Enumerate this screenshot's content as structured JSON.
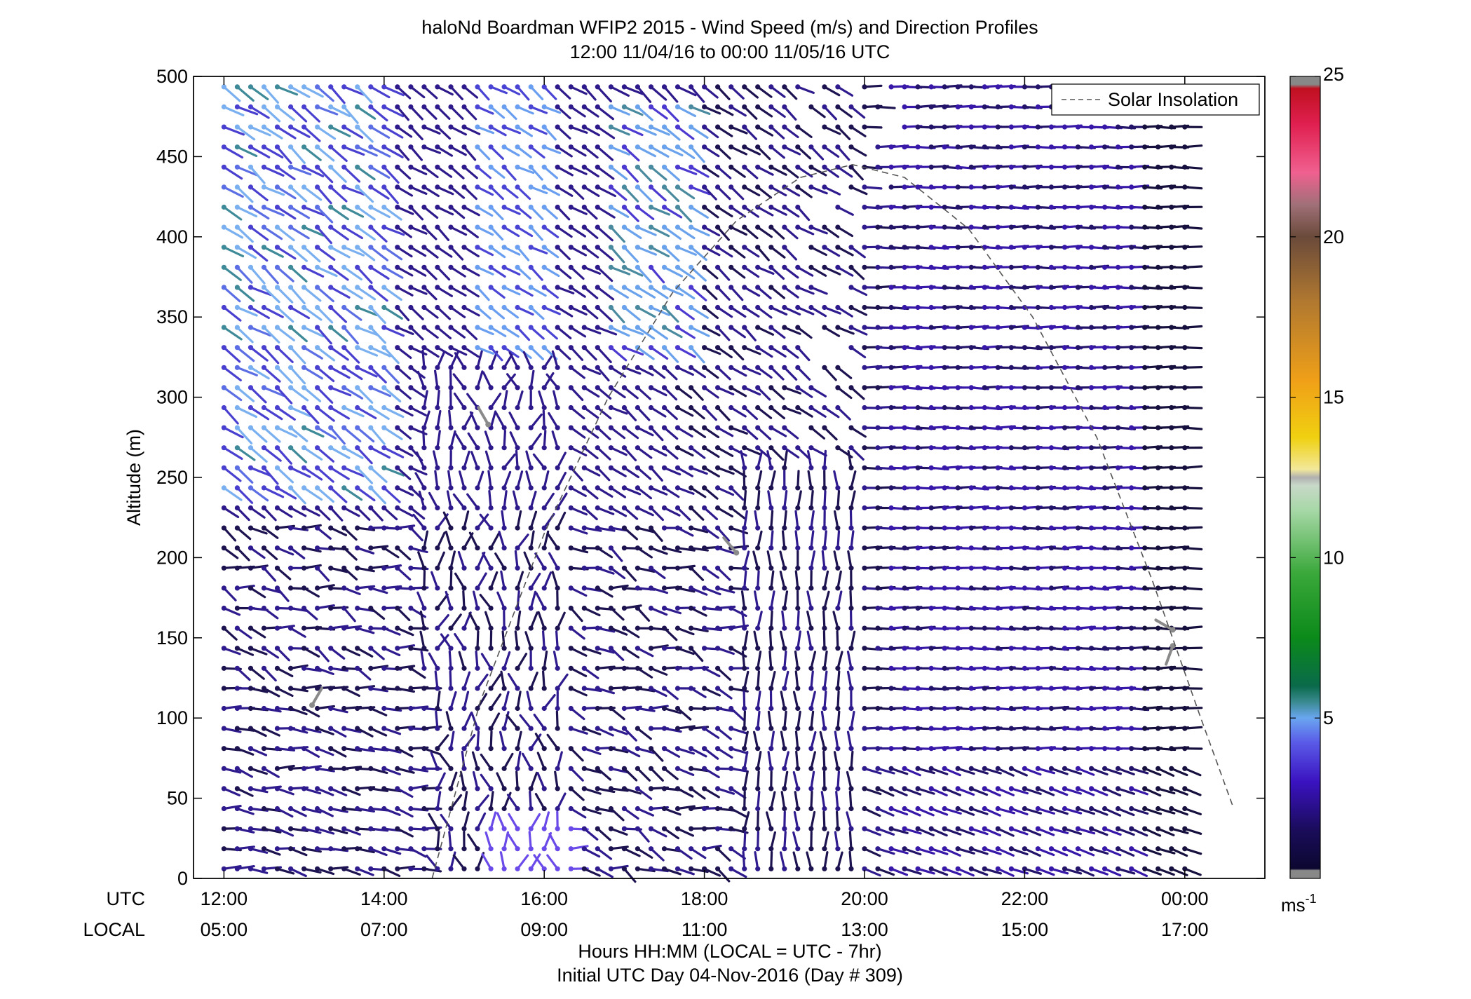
{
  "chart_data": {
    "type": "wind_barb_profile",
    "title": "haloNd Boardman WFIP2 2015 - Wind Speed (m/s) and Direction Profiles",
    "subtitle": "12:00 11/04/16 to 00:00 11/05/16  UTC",
    "ylabel": "Altitude (m)",
    "xlabel": "Hours HH:MM  (LOCAL = UTC - 7hr)",
    "xlabel2": "Initial UTC Day 04-Nov-2016 (Day # 309)",
    "ylim": [
      0,
      500
    ],
    "xlim_hours": [
      11.62,
      25.0
    ],
    "y_ticks": [
      "0",
      "50",
      "100",
      "150",
      "200",
      "250",
      "300",
      "350",
      "400",
      "450",
      "500"
    ],
    "utc_row_label": "UTC",
    "local_row_label": "LOCAL",
    "utc_ticks": [
      "12:00",
      "14:00",
      "16:00",
      "18:00",
      "20:00",
      "22:00",
      "00:00"
    ],
    "local_ticks": [
      "05:00",
      "07:00",
      "09:00",
      "11:00",
      "13:00",
      "15:00",
      "17:00"
    ],
    "legend": {
      "label": "Solar Insolation",
      "position": "top-right"
    },
    "colorbar": {
      "range": [
        0,
        25
      ],
      "ticks": [
        "5",
        "10",
        "15",
        "20",
        "25"
      ],
      "unit": "ms",
      "unit_exp": "-1"
    },
    "solar_insolation": {
      "hours": [
        14.6,
        15.2,
        16.0,
        16.8,
        17.6,
        18.4,
        19.2,
        19.85,
        20.5,
        21.3,
        22.1,
        22.9,
        23.6,
        24.2,
        24.6
      ],
      "altitudes": [
        0,
        110,
        215,
        300,
        365,
        410,
        437,
        445,
        437,
        405,
        350,
        275,
        185,
        100,
        45
      ]
    },
    "wind_field_summary": "Profiles every ~10 min from 12:00 to 00:00 UTC and every ~12.5 m to 495 m. Speeds mostly 1-4 m/s (dark purple), 4-6 m/s light blue/teal aloft 12:00-14:00 UTC and 17:00-18:00 UTC; near-calm grey barbs at isolated points."
  }
}
